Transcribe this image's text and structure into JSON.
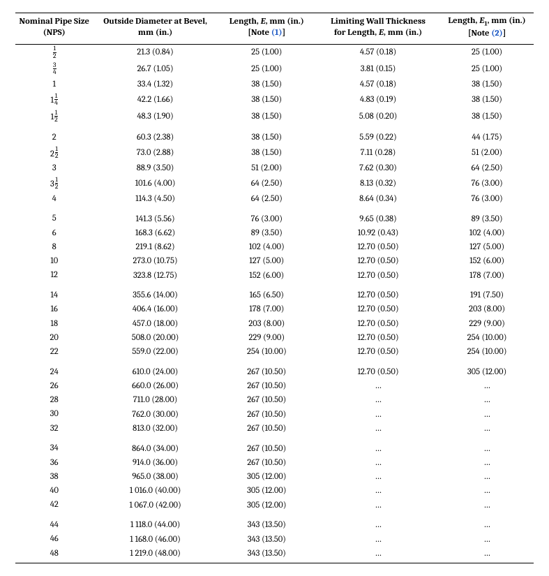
{
  "columns": [
    {
      "lines": [
        "Nominal Pipe Size",
        "(NPS)"
      ],
      "note": null
    },
    {
      "lines": [
        "Outside Diameter at Bevel,",
        "mm (in.)"
      ],
      "note": null
    },
    {
      "lines": [
        "Length, <i>E</i>, mm (in.)"
      ],
      "note": "(1)"
    },
    {
      "lines": [
        "Limiting Wall Thickness",
        "for Length, <i>E</i>, mm (in.)"
      ],
      "note": null
    },
    {
      "lines": [
        "Length, <i>E</i><sub>1</sub>, mm (in.)"
      ],
      "note": "(2)"
    }
  ],
  "note_prefix": "[Note ",
  "note_suffix": "]",
  "groups": [
    [
      {
        "nps_int": "",
        "nps_num": "1",
        "nps_den": "2",
        "od": "21.3 (0.84)",
        "e": "25 (1.00)",
        "lim": "4.57 (0.18)",
        "e1": "25 (1.00)"
      },
      {
        "nps_int": "",
        "nps_num": "3",
        "nps_den": "4",
        "od": "26.7 (1.05)",
        "e": "25 (1.00)",
        "lim": "3.81 (0.15)",
        "e1": "25 (1.00)"
      },
      {
        "nps_int": "1",
        "nps_num": "",
        "nps_den": "",
        "od": "33.4 (1.32)",
        "e": "38 (1.50)",
        "lim": "4.57 (0.18)",
        "e1": "38 (1.50)"
      },
      {
        "nps_int": "1",
        "nps_num": "1",
        "nps_den": "4",
        "od": "42.2 (1.66)",
        "e": "38 (1.50)",
        "lim": "4.83 (0.19)",
        "e1": "38 (1.50)"
      },
      {
        "nps_int": "1",
        "nps_num": "1",
        "nps_den": "2",
        "od": "48.3 (1.90)",
        "e": "38 (1.50)",
        "lim": "5.08 (0.20)",
        "e1": "38 (1.50)"
      }
    ],
    [
      {
        "nps_int": "2",
        "nps_num": "",
        "nps_den": "",
        "od": "60.3 (2.38)",
        "e": "38 (1.50)",
        "lim": "5.59 (0.22)",
        "e1": "44 (1.75)"
      },
      {
        "nps_int": "2",
        "nps_num": "1",
        "nps_den": "2",
        "od": "73.0 (2.88)",
        "e": "38 (1.50)",
        "lim": "7.11 (0.28)",
        "e1": "51 (2.00)"
      },
      {
        "nps_int": "3",
        "nps_num": "",
        "nps_den": "",
        "od": "88.9 (3.50)",
        "e": "51 (2.00)",
        "lim": "7.62 (0.30)",
        "e1": "64 (2.50)"
      },
      {
        "nps_int": "3",
        "nps_num": "1",
        "nps_den": "2",
        "od": "101.6 (4.00)",
        "e": "64 (2.50)",
        "lim": "8.13 (0.32)",
        "e1": "76 (3.00)"
      },
      {
        "nps_int": "4",
        "nps_num": "",
        "nps_den": "",
        "od": "114.3 (4.50)",
        "e": "64 (2.50)",
        "lim": "8.64 (0.34)",
        "e1": "76 (3.00)"
      }
    ],
    [
      {
        "nps_int": "5",
        "nps_num": "",
        "nps_den": "",
        "od": "141.3 (5.56)",
        "e": "76 (3.00)",
        "lim": "9.65 (0.38)",
        "e1": "89 (3.50)"
      },
      {
        "nps_int": "6",
        "nps_num": "",
        "nps_den": "",
        "od": "168.3 (6.62)",
        "e": "89 (3.50)",
        "lim": "10.92 (0.43)",
        "e1": "102 (4.00)"
      },
      {
        "nps_int": "8",
        "nps_num": "",
        "nps_den": "",
        "od": "219.1 (8.62)",
        "e": "102 (4.00)",
        "lim": "12.70 (0.50)",
        "e1": "127 (5.00)"
      },
      {
        "nps_int": "10",
        "nps_num": "",
        "nps_den": "",
        "od": "273.0 (10.75)",
        "e": "127 (5.00)",
        "lim": "12.70 (0.50)",
        "e1": "152 (6.00)"
      },
      {
        "nps_int": "12",
        "nps_num": "",
        "nps_den": "",
        "od": "323.8 (12.75)",
        "e": "152 (6.00)",
        "lim": "12.70 (0.50)",
        "e1": "178 (7.00)"
      }
    ],
    [
      {
        "nps_int": "14",
        "nps_num": "",
        "nps_den": "",
        "od": "355.6 (14.00)",
        "e": "165 (6.50)",
        "lim": "12.70 (0.50)",
        "e1": "191 (7.50)"
      },
      {
        "nps_int": "16",
        "nps_num": "",
        "nps_den": "",
        "od": "406.4 (16.00)",
        "e": "178 (7.00)",
        "lim": "12.70 (0.50)",
        "e1": "203 (8.00)"
      },
      {
        "nps_int": "18",
        "nps_num": "",
        "nps_den": "",
        "od": "457.0 (18.00)",
        "e": "203 (8.00)",
        "lim": "12.70 (0.50)",
        "e1": "229 (9.00)"
      },
      {
        "nps_int": "20",
        "nps_num": "",
        "nps_den": "",
        "od": "508.0 (20.00)",
        "e": "229 (9.00)",
        "lim": "12.70 (0.50)",
        "e1": "254 (10.00)"
      },
      {
        "nps_int": "22",
        "nps_num": "",
        "nps_den": "",
        "od": "559.0 (22.00)",
        "e": "254 (10.00)",
        "lim": "12.70 (0.50)",
        "e1": "254 (10.00)"
      }
    ],
    [
      {
        "nps_int": "24",
        "nps_num": "",
        "nps_den": "",
        "od": "610.0 (24.00)",
        "e": "267 (10.50)",
        "lim": "12.70 (0.50)",
        "e1": "305 (12.00)"
      },
      {
        "nps_int": "26",
        "nps_num": "",
        "nps_den": "",
        "od": "660.0 (26.00)",
        "e": "267 (10.50)",
        "lim": "…",
        "e1": "…"
      },
      {
        "nps_int": "28",
        "nps_num": "",
        "nps_den": "",
        "od": "711.0 (28.00)",
        "e": "267 (10.50)",
        "lim": "…",
        "e1": "…"
      },
      {
        "nps_int": "30",
        "nps_num": "",
        "nps_den": "",
        "od": "762.0 (30.00)",
        "e": "267 (10.50)",
        "lim": "…",
        "e1": "…"
      },
      {
        "nps_int": "32",
        "nps_num": "",
        "nps_den": "",
        "od": "813.0 (32.00)",
        "e": "267 (10.50)",
        "lim": "…",
        "e1": "…"
      }
    ],
    [
      {
        "nps_int": "34",
        "nps_num": "",
        "nps_den": "",
        "od": "864.0 (34.00)",
        "e": "267 (10.50)",
        "lim": "…",
        "e1": "…"
      },
      {
        "nps_int": "36",
        "nps_num": "",
        "nps_den": "",
        "od": "914.0 (36.00)",
        "e": "267 (10.50)",
        "lim": "…",
        "e1": "…"
      },
      {
        "nps_int": "38",
        "nps_num": "",
        "nps_den": "",
        "od": "965.0 (38.00)",
        "e": "305 (12.00)",
        "lim": "…",
        "e1": "…"
      },
      {
        "nps_int": "40",
        "nps_num": "",
        "nps_den": "",
        "od": "1 016.0 (40.00)",
        "e": "305 (12.00)",
        "lim": "…",
        "e1": "…"
      },
      {
        "nps_int": "42",
        "nps_num": "",
        "nps_den": "",
        "od": "1 067.0 (42.00)",
        "e": "305 (12.00)",
        "lim": "…",
        "e1": "…"
      }
    ],
    [
      {
        "nps_int": "44",
        "nps_num": "",
        "nps_den": "",
        "od": "1 118.0 (44.00)",
        "e": "343 (13.50)",
        "lim": "…",
        "e1": "…"
      },
      {
        "nps_int": "46",
        "nps_num": "",
        "nps_den": "",
        "od": "1 168.0 (46.00)",
        "e": "343 (13.50)",
        "lim": "…",
        "e1": "…"
      },
      {
        "nps_int": "48",
        "nps_num": "",
        "nps_den": "",
        "od": "1 219.0 (48.00)",
        "e": "343 (13.50)",
        "lim": "…",
        "e1": "…"
      }
    ]
  ]
}
